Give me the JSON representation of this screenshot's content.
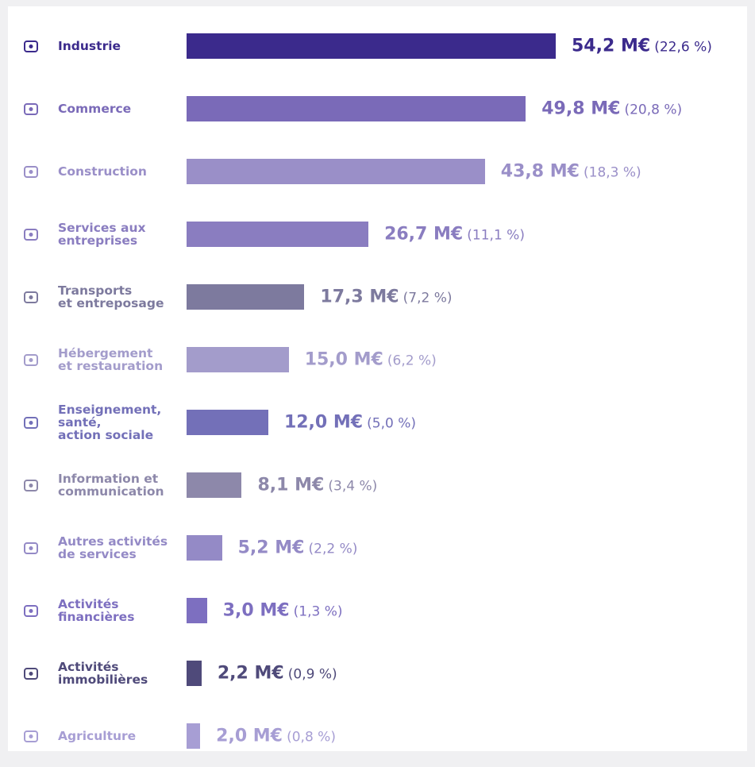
{
  "chart_data": {
    "type": "bar",
    "orientation": "horizontal",
    "categories": [
      "Industrie",
      "Commerce",
      "Construction",
      "Services aux\nentreprises",
      "Transports\net entreposage",
      "Hébergement\net restauration",
      "Enseignement,\nsanté,\naction sociale",
      "Information et\ncommunication",
      "Autres activités\nde services",
      "Activités\nfinancières",
      "Activités\nimmobilières",
      "Agriculture"
    ],
    "values": [
      54.2,
      49.8,
      43.8,
      26.7,
      17.3,
      15.0,
      12.0,
      8.1,
      5.2,
      3.0,
      2.2,
      2.0
    ],
    "value_labels": [
      "54,2 M€",
      "49,8 M€",
      "43,8 M€",
      "26,7 M€",
      "17,3 M€",
      "15,0 M€",
      "12,0 M€",
      "8,1 M€",
      "5,2 M€",
      "3,0 M€",
      "2,2 M€",
      "2,0 M€"
    ],
    "share_labels": [
      "(22,6 %)",
      "(20,8 %)",
      "(18,3 %)",
      "(11,1 %)",
      "(7,2 %)",
      "(6,2 %)",
      "(5,0 %)",
      "(3,4 %)",
      "(2,2 %)",
      "(1,3 %)",
      "(0,9 %)",
      "(0,8 %)"
    ],
    "colors": [
      "#3b2a8c",
      "#7a6ab8",
      "#9a8fc8",
      "#8a7dc0",
      "#7d7a9e",
      "#a39ccb",
      "#7370b8",
      "#8d88aa",
      "#948ac6",
      "#7d6fc0",
      "#4f4a7a",
      "#a79ed4"
    ]
  }
}
